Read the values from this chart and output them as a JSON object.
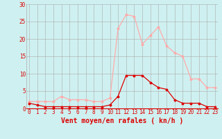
{
  "x": [
    0,
    1,
    2,
    3,
    4,
    5,
    6,
    7,
    8,
    9,
    10,
    11,
    12,
    13,
    14,
    15,
    16,
    17,
    18,
    19,
    20,
    21,
    22,
    23
  ],
  "wind_avg": [
    1.5,
    1.0,
    0.5,
    0.5,
    0.5,
    0.5,
    0.5,
    0.5,
    0.5,
    0.5,
    1.0,
    3.5,
    9.5,
    9.5,
    9.5,
    7.5,
    6.0,
    5.5,
    2.5,
    1.5,
    1.5,
    1.5,
    0.5,
    0.5
  ],
  "wind_gust": [
    2.0,
    2.0,
    2.0,
    2.0,
    3.5,
    2.5,
    2.5,
    2.5,
    2.0,
    2.0,
    3.0,
    23.0,
    27.0,
    26.5,
    18.5,
    21.0,
    23.5,
    18.0,
    16.0,
    15.0,
    8.5,
    8.5,
    6.0,
    6.0
  ],
  "color_avg": "#dd0000",
  "color_gust": "#ffaaaa",
  "bg_color": "#cff0f0",
  "grid_color": "#aaaaaa",
  "xlabel": "Vent moyen/en rafales ( kn/h )",
  "xlabel_color": "#dd0000",
  "ylim": [
    0,
    30
  ],
  "yticks": [
    0,
    5,
    10,
    15,
    20,
    25,
    30
  ],
  "tick_fontsize": 5.5,
  "xlabel_fontsize": 7.0
}
